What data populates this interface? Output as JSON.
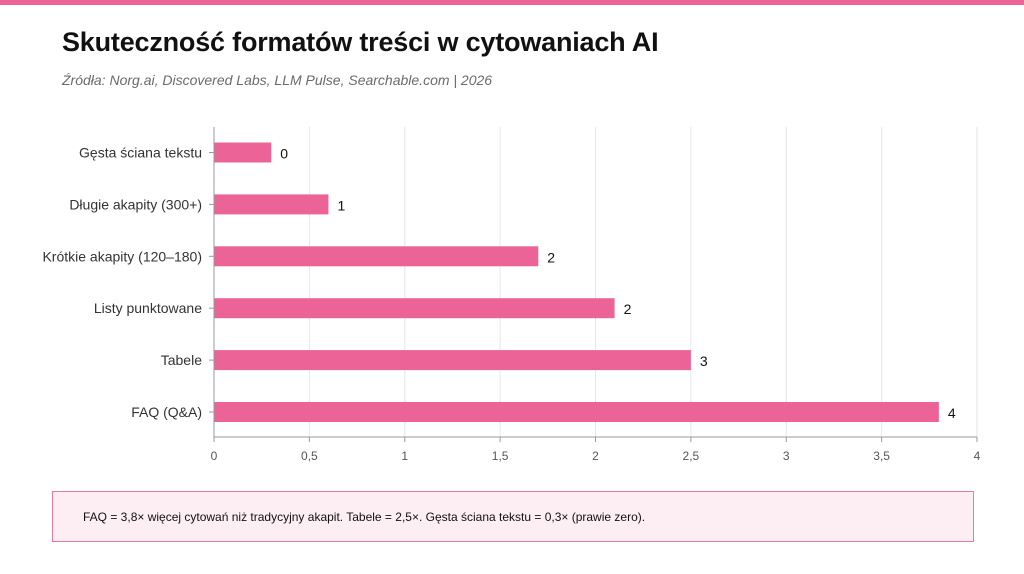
{
  "header": {
    "title": "Skuteczność formatów treści w cytowaniach AI",
    "subtitle": "Źródła: Norg.ai, Discovered Labs, LLM Pulse, Searchable.com | 2026"
  },
  "colors": {
    "accent": "#ec6497",
    "bar": "#ec6497",
    "note_background": "#fdeef3",
    "note_border": "#e8799f"
  },
  "chart_data": {
    "type": "bar",
    "orientation": "horizontal",
    "categories": [
      "Gęsta ściana tekstu",
      "Długie akapity (300+)",
      "Krótkie akapity (120–180)",
      "Listy punktowane",
      "Tabele",
      "FAQ (Q&A)"
    ],
    "values": [
      0.3,
      0.6,
      1.7,
      2.1,
      2.5,
      3.8
    ],
    "data_labels": [
      "0",
      "1",
      "2",
      "2",
      "3",
      "4"
    ],
    "xlim": [
      0,
      4
    ],
    "x_ticks": [
      0,
      0.5,
      1,
      1.5,
      2,
      2.5,
      3,
      3.5,
      4
    ],
    "x_tick_labels": [
      "0",
      "0,5",
      "1",
      "1,5",
      "2",
      "2,5",
      "3",
      "3,5",
      "4"
    ],
    "grid": true,
    "xlabel": "",
    "ylabel": ""
  },
  "note": {
    "text": "FAQ = 3,8× więcej cytowań niż tradycyjny akapit. Tabele = 2,5×. Gęsta ściana tekstu = 0,3× (prawie zero)."
  }
}
